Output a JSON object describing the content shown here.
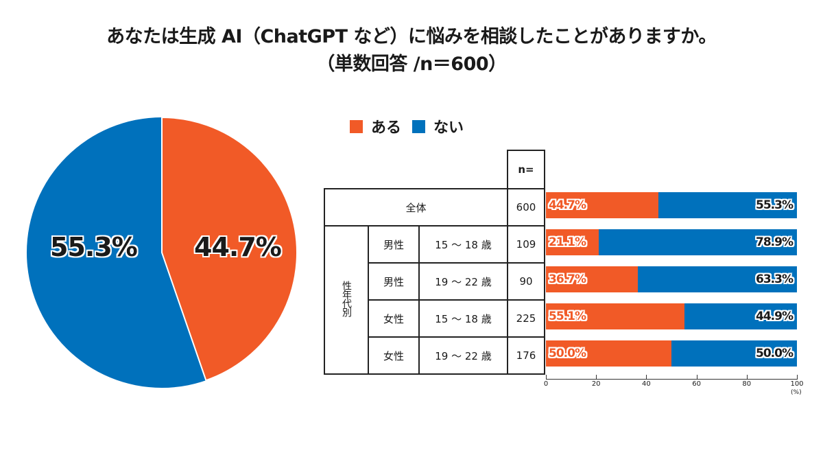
{
  "title": {
    "line1": "あなたは生成 AI（ChatGPT など）に悩みを相談したことがありますか。",
    "line2": "（単数回答 /n＝600）"
  },
  "colors": {
    "yes": "#f15a27",
    "no": "#0071bc"
  },
  "legend": [
    {
      "label": "ある",
      "color": "#f15a27"
    },
    {
      "label": "ない",
      "color": "#0071bc"
    }
  ],
  "pie": {
    "yes_label": "44.7%",
    "no_label": "55.3%"
  },
  "table": {
    "n_header": "n=",
    "overall_label": "全体",
    "group_label": "性年代別",
    "rows": [
      {
        "gender": "男性",
        "age": "15 ～ 18 歳",
        "n": "109"
      },
      {
        "gender": "男性",
        "age": "19 ～ 22 歳",
        "n": "90"
      },
      {
        "gender": "女性",
        "age": "15 ～ 18 歳",
        "n": "225"
      },
      {
        "gender": "女性",
        "age": "19 ～ 22 歳",
        "n": "176"
      }
    ],
    "overall_n": "600"
  },
  "bars": [
    {
      "yes": "44.7%",
      "no": "55.3%"
    },
    {
      "yes": "21.1%",
      "no": "78.9%"
    },
    {
      "yes": "36.7%",
      "no": "63.3%"
    },
    {
      "yes": "55.1%",
      "no": "44.9%"
    },
    {
      "yes": "50.0%",
      "no": "50.0%"
    }
  ],
  "axis": {
    "ticks": [
      "0",
      "20",
      "40",
      "60",
      "80",
      "100"
    ],
    "unit": "(%)"
  },
  "chart_data": [
    {
      "type": "pie",
      "title": "あなたは生成 AI（ChatGPT など）に悩みを相談したことがありますか。（単数回答 /n＝600）",
      "categories": [
        "ある",
        "ない"
      ],
      "values": [
        44.7,
        55.3
      ],
      "colors": [
        "#f15a27",
        "#0071bc"
      ]
    },
    {
      "type": "bar",
      "orientation": "horizontal",
      "stacked": true,
      "categories": [
        "全体",
        "男性 15～18歳",
        "男性 19～22歳",
        "女性 15～18歳",
        "女性 19～22歳"
      ],
      "n": [
        600,
        109,
        90,
        225,
        176
      ],
      "series": [
        {
          "name": "ある",
          "values": [
            44.7,
            21.1,
            36.7,
            55.1,
            50.0
          ],
          "color": "#f15a27"
        },
        {
          "name": "ない",
          "values": [
            55.3,
            78.9,
            63.3,
            44.9,
            50.0
          ],
          "color": "#0071bc"
        }
      ],
      "xlim": [
        0,
        100
      ],
      "xticks": [
        0,
        20,
        40,
        60,
        80,
        100
      ],
      "xlabel": "(%)",
      "legend_position": "top"
    }
  ]
}
